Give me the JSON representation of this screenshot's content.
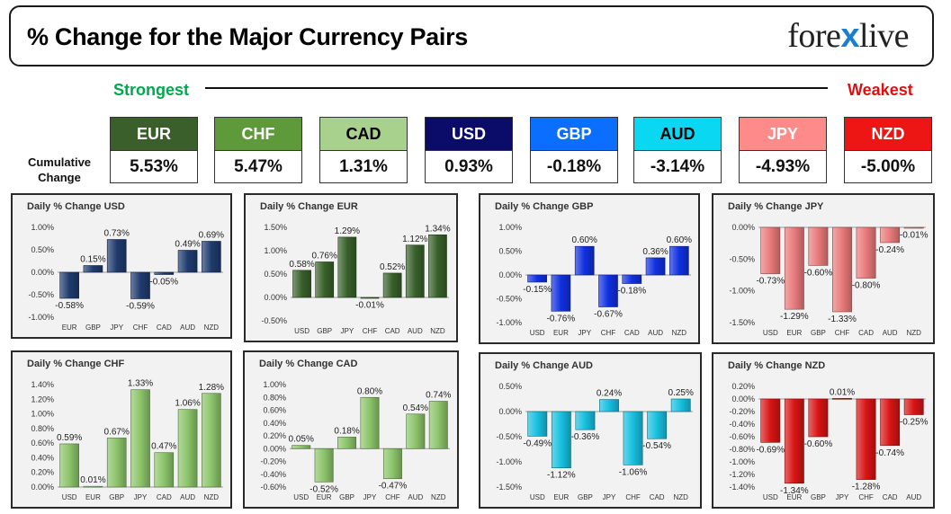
{
  "header": {
    "title": "% Change for the Major Currency Pairs",
    "logo_left": "fore",
    "logo_x": "x",
    "logo_right": "live"
  },
  "scale": {
    "strongest": "Strongest",
    "weakest": "Weakest"
  },
  "cumulative": {
    "label_line1": "Cumulative",
    "label_line2": "Change",
    "tiles": [
      {
        "code": "EUR",
        "value": "5.53%",
        "bg": "#3a5f2a",
        "fg": "#ffffff"
      },
      {
        "code": "CHF",
        "value": "5.47%",
        "bg": "#5e9a3a",
        "fg": "#ffffff"
      },
      {
        "code": "CAD",
        "value": "1.31%",
        "bg": "#a9d18e",
        "fg": "#000000"
      },
      {
        "code": "USD",
        "value": "0.93%",
        "bg": "#0b0b6a",
        "fg": "#ffffff"
      },
      {
        "code": "GBP",
        "value": "-0.18%",
        "bg": "#0a6fff",
        "fg": "#ffffff"
      },
      {
        "code": "AUD",
        "value": "-3.14%",
        "bg": "#0ad8f2",
        "fg": "#000000"
      },
      {
        "code": "JPY",
        "value": "-4.93%",
        "bg": "#ff8a8a",
        "fg": "#ffffff"
      },
      {
        "code": "NZD",
        "value": "-5.00%",
        "bg": "#ee1515",
        "fg": "#ffffff"
      }
    ]
  },
  "chart_data": [
    {
      "type": "bar",
      "title": "Daily % Change USD",
      "color": "#1f3b6e",
      "categories": [
        "EUR",
        "GBP",
        "JPY",
        "CHF",
        "CAD",
        "AUD",
        "NZD"
      ],
      "values": [
        -0.58,
        0.15,
        0.73,
        -0.59,
        -0.05,
        0.49,
        0.69
      ],
      "value_labels": [
        "-0.58%",
        "0.15%",
        "0.73%",
        "-0.59%",
        "-0.05%",
        "0.49%",
        "0.69%"
      ],
      "ylim": [
        -1.0,
        1.0
      ],
      "yticks": [
        1.0,
        0.5,
        0.0,
        -0.5,
        -1.0
      ],
      "ytick_labels": [
        "1.00%",
        "0.50%",
        "0.00%",
        "-0.50%",
        "-1.00%"
      ]
    },
    {
      "type": "bar",
      "title": "Daily % Change EUR",
      "color": "#38602a",
      "categories": [
        "USD",
        "GBP",
        "JPY",
        "CHF",
        "CAD",
        "AUD",
        "NZD"
      ],
      "values": [
        0.58,
        0.76,
        1.29,
        -0.01,
        0.52,
        1.12,
        1.34
      ],
      "value_labels": [
        "0.58%",
        "0.76%",
        "1.29%",
        "-0.01%",
        "0.52%",
        "1.12%",
        "1.34%"
      ],
      "ylim": [
        -0.5,
        1.5
      ],
      "yticks": [
        1.5,
        1.0,
        0.5,
        0.0,
        -0.5
      ],
      "ytick_labels": [
        "1.50%",
        "1.00%",
        "0.50%",
        "0.00%",
        "-0.50%"
      ]
    },
    {
      "type": "bar",
      "title": "Daily % Change GBP",
      "color": "#1030e0",
      "categories": [
        "USD",
        "EUR",
        "JPY",
        "CHF",
        "CAD",
        "AUD",
        "NZD"
      ],
      "values": [
        -0.15,
        -0.76,
        0.6,
        -0.67,
        -0.18,
        0.36,
        0.6
      ],
      "value_labels": [
        "-0.15%",
        "-0.76%",
        "0.60%",
        "-0.67%",
        "-0.18%",
        "0.36%",
        "0.60%"
      ],
      "ylim": [
        -1.0,
        1.0
      ],
      "yticks": [
        1.0,
        0.5,
        0.0,
        -0.5,
        -1.0
      ],
      "ytick_labels": [
        "1.00%",
        "0.50%",
        "0.00%",
        "-0.50%",
        "-1.00%"
      ]
    },
    {
      "type": "bar",
      "title": "Daily % Change JPY",
      "color": "#e97a7a",
      "categories": [
        "USD",
        "EUR",
        "GBP",
        "CHF",
        "CAD",
        "AUD",
        "NZD"
      ],
      "values": [
        -0.73,
        -1.29,
        -0.6,
        -1.33,
        -0.8,
        -0.24,
        -0.01
      ],
      "value_labels": [
        "-0.73%",
        "-1.29%",
        "-0.60%",
        "-1.33%",
        "-0.80%",
        "-0.24%",
        "-0.01%"
      ],
      "ylim": [
        -1.5,
        0.0
      ],
      "yticks": [
        0.0,
        -0.5,
        -1.0,
        -1.5
      ],
      "ytick_labels": [
        "0.00%",
        "-0.50%",
        "-1.00%",
        "-1.50%"
      ]
    },
    {
      "type": "bar",
      "title": "Daily % Change CHF",
      "color": "#8cc46a",
      "categories": [
        "USD",
        "EUR",
        "GBP",
        "JPY",
        "CAD",
        "AUD",
        "NZD"
      ],
      "values": [
        0.59,
        0.01,
        0.67,
        1.33,
        0.47,
        1.06,
        1.28
      ],
      "value_labels": [
        "0.59%",
        "0.01%",
        "0.67%",
        "1.33%",
        "0.47%",
        "1.06%",
        "1.28%"
      ],
      "ylim": [
        0.0,
        1.4
      ],
      "yticks": [
        1.4,
        1.2,
        1.0,
        0.8,
        0.6,
        0.4,
        0.2,
        0.0
      ],
      "ytick_labels": [
        "1.40%",
        "1.20%",
        "1.00%",
        "0.80%",
        "0.60%",
        "0.40%",
        "0.20%",
        "0.00%"
      ]
    },
    {
      "type": "bar",
      "title": "Daily % Change CAD",
      "color": "#8cc46a",
      "categories": [
        "USD",
        "EUR",
        "GBP",
        "JPY",
        "CHF",
        "AUD",
        "NZD"
      ],
      "values": [
        0.05,
        -0.52,
        0.18,
        0.8,
        -0.47,
        0.54,
        0.74
      ],
      "value_labels": [
        "0.05%",
        "-0.52%",
        "0.18%",
        "0.80%",
        "-0.47%",
        "0.54%",
        "0.74%"
      ],
      "ylim": [
        -0.6,
        1.0
      ],
      "yticks": [
        1.0,
        0.8,
        0.6,
        0.4,
        0.2,
        0.0,
        -0.2,
        -0.4,
        -0.6
      ],
      "ytick_labels": [
        "1.00%",
        "0.80%",
        "0.60%",
        "0.40%",
        "0.20%",
        "0.00%",
        "-0.20%",
        "-0.40%",
        "-0.60%"
      ]
    },
    {
      "type": "bar",
      "title": "Daily % Change AUD",
      "color": "#16c0e0",
      "categories": [
        "USD",
        "EUR",
        "GBP",
        "JPY",
        "CHF",
        "CAD",
        "NZD"
      ],
      "values": [
        -0.49,
        -1.12,
        -0.36,
        0.24,
        -1.06,
        -0.54,
        0.25
      ],
      "value_labels": [
        "-0.49%",
        "-1.12%",
        "-0.36%",
        "0.24%",
        "-1.06%",
        "-0.54%",
        "0.25%"
      ],
      "ylim": [
        -1.5,
        0.5
      ],
      "yticks": [
        0.5,
        0.0,
        -0.5,
        -1.0,
        -1.5
      ],
      "ytick_labels": [
        "0.50%",
        "0.00%",
        "-0.50%",
        "-1.00%",
        "-1.50%"
      ]
    },
    {
      "type": "bar",
      "title": "Daily % Change NZD",
      "color": "#d81414",
      "categories": [
        "USD",
        "EUR",
        "GBP",
        "JPY",
        "CHF",
        "CAD",
        "AUD"
      ],
      "values": [
        -0.69,
        -1.34,
        -0.6,
        0.01,
        -1.28,
        -0.74,
        -0.25
      ],
      "value_labels": [
        "-0.69%",
        "-1.34%",
        "-0.60%",
        "0.01%",
        "-1.28%",
        "-0.74%",
        "-0.25%"
      ],
      "ylim": [
        -1.4,
        0.2
      ],
      "yticks": [
        0.2,
        0.0,
        -0.2,
        -0.4,
        -0.6,
        -0.8,
        -1.0,
        -1.2,
        -1.4
      ],
      "ytick_labels": [
        "0.20%",
        "0.00%",
        "-0.20%",
        "-0.40%",
        "-0.60%",
        "-0.80%",
        "-1.00%",
        "-1.20%",
        "-1.40%"
      ]
    }
  ]
}
